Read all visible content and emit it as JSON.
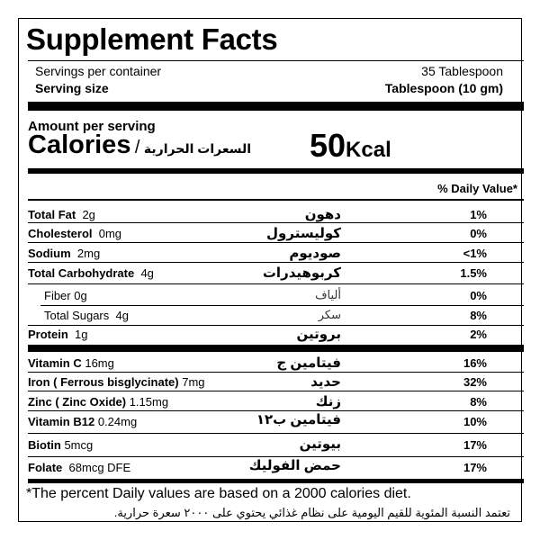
{
  "title": "Supplement Facts",
  "servings_per_container_label": "Servings per container",
  "servings_per_container_value": "35 Tablespoon",
  "serving_size_label": "Serving size",
  "serving_size_value": "Tablespoon (10 gm)",
  "amount_per_serving": "Amount per serving",
  "calories_label": "Calories",
  "calories_slash": "/",
  "calories_arabic": "السعرات الحرارية",
  "calories_value": "50",
  "calories_unit": "Kcal",
  "daily_value_header": "% Daily Value*",
  "rows": [
    {
      "name": "Total Fat",
      "amount": "2g",
      "arabic": "دهون",
      "dv": "1%"
    },
    {
      "name": "Cholesterol",
      "amount": "0mg",
      "arabic": "كوليسترول",
      "dv": "0%"
    },
    {
      "name": "Sodium",
      "amount": "2mg",
      "arabic": "صوديوم",
      "dv": "<1%"
    },
    {
      "name": "Total Carbohydrate",
      "amount": "4g",
      "arabic": "كربوهيدرات",
      "dv": "1.5%"
    },
    {
      "name": "Fiber",
      "amount": "0g",
      "arabic": "ألياف",
      "dv": "0%"
    },
    {
      "name": "Total Sugars",
      "amount": "4g",
      "arabic": "سكر",
      "dv": "8%"
    },
    {
      "name": "Protein",
      "amount": "1g",
      "arabic": "بروتين",
      "dv": "2%"
    },
    {
      "name": "Vitamin C",
      "amount": "16mg",
      "arabic": "فيتامين ج",
      "dv": "16%"
    },
    {
      "name": "Iron ( Ferrous bisglycinate)",
      "amount": "7mg",
      "arabic": "حديد",
      "dv": "32%"
    },
    {
      "name": "Zinc ( Zinc Oxide)",
      "amount": "1.15mg",
      "arabic": "زنك",
      "dv": "8%"
    },
    {
      "name": "Vitamin B12",
      "amount": "0.24mg",
      "arabic": "فيتامين ب١٢",
      "dv": "10%"
    },
    {
      "name": "Biotin",
      "amount": "5mcg",
      "arabic": "بيوتين",
      "dv": "17%"
    },
    {
      "name": "Folate",
      "amount": "68mcg DFE",
      "arabic": "حمض الفوليك",
      "dv": "17%"
    }
  ],
  "footnote_en": "*The percent Daily values are based on a 2000 calories diet.",
  "footnote_ar": "تعتمد النسبة المئوية للقيم اليومية على نظام غذائي يحتوي على ٢٠٠٠ سعرة حرارية."
}
